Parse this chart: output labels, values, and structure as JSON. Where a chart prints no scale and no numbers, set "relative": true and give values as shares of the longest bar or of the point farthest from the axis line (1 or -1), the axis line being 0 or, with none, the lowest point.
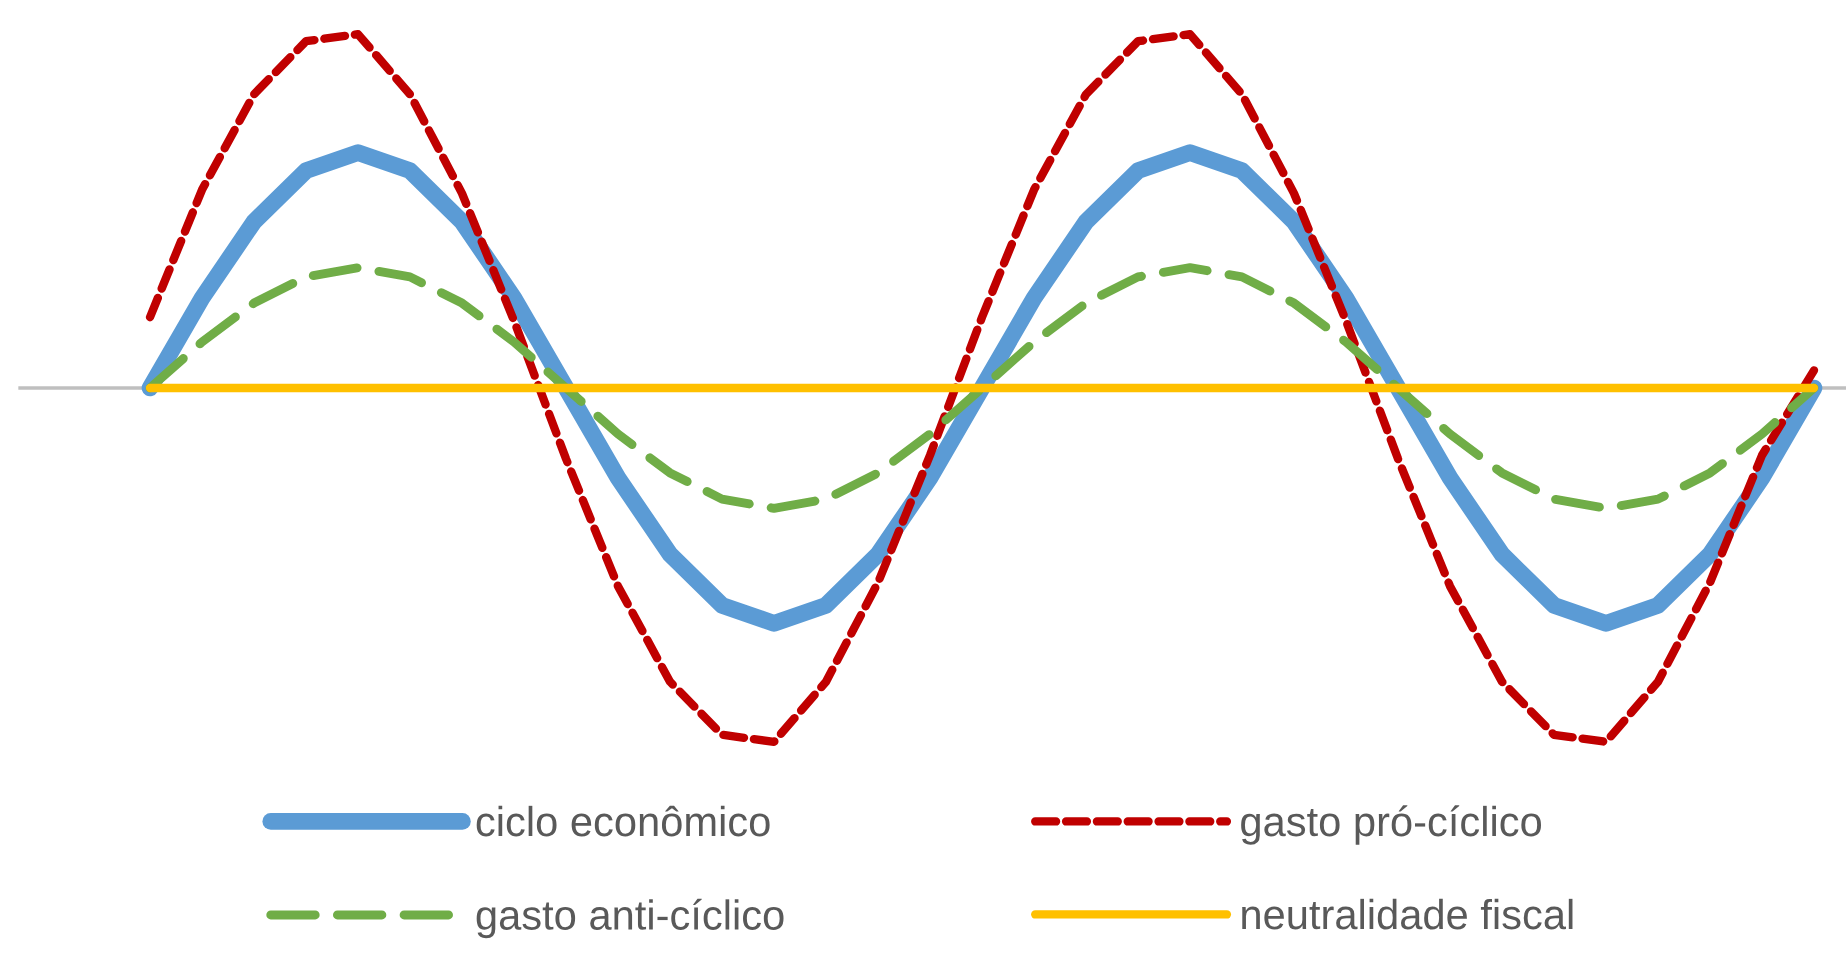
{
  "chart_data": {
    "type": "line",
    "relative": true,
    "categories": [
      null,
      null,
      null,
      null,
      null,
      null,
      null,
      null,
      null,
      null,
      null,
      null,
      null,
      null,
      null,
      null,
      null,
      null,
      null,
      null,
      null,
      null,
      null,
      null,
      null,
      null,
      null,
      null,
      null,
      null,
      null,
      null,
      null
    ],
    "series": [
      {
        "name": "ciclo econômico",
        "color": "#5b9bd5",
        "line_style": "solid",
        "values": [
          0,
          0.254,
          0.47,
          0.614,
          0.665,
          0.614,
          0.47,
          0.254,
          0,
          -0.254,
          -0.47,
          -0.614,
          -0.665,
          -0.614,
          -0.47,
          -0.254,
          0,
          0.254,
          0.47,
          0.614,
          0.665,
          0.614,
          0.47,
          0.254,
          0,
          -0.254,
          -0.47,
          -0.614,
          -0.665,
          -0.614,
          -0.47,
          -0.254,
          0
        ]
      },
      {
        "name": "gasto pró-cíclico",
        "color": "#c00000",
        "line_style": "dotted",
        "values": [
          0.2,
          0.56,
          0.83,
          0.98,
          1,
          0.83,
          0.55,
          0.19,
          -0.2,
          -0.56,
          -0.83,
          -0.98,
          -1,
          -0.83,
          -0.55,
          -0.19,
          0.2,
          0.56,
          0.83,
          0.98,
          1,
          0.83,
          0.55,
          0.19,
          -0.2,
          -0.56,
          -0.83,
          -0.98,
          -1,
          -0.83,
          -0.55,
          -0.19,
          0.05
        ]
      },
      {
        "name": "gasto anti-cíclico",
        "color": "#70ad47",
        "line_style": "dashed",
        "values": [
          0,
          0.13,
          0.24,
          0.314,
          0.34,
          0.314,
          0.24,
          0.13,
          0,
          -0.13,
          -0.24,
          -0.314,
          -0.34,
          -0.314,
          -0.24,
          -0.13,
          0,
          0.13,
          0.24,
          0.314,
          0.34,
          0.314,
          0.24,
          0.13,
          0,
          -0.13,
          -0.24,
          -0.314,
          -0.34,
          -0.314,
          -0.24,
          -0.13,
          0
        ]
      },
      {
        "name": "neutralidade fiscal",
        "color": "#ffc000",
        "line_style": "solid",
        "values": [
          0,
          0,
          0,
          0,
          0,
          0,
          0,
          0,
          0,
          0,
          0,
          0,
          0,
          0,
          0,
          0,
          0,
          0,
          0,
          0,
          0,
          0,
          0,
          0,
          0,
          0,
          0,
          0,
          0,
          0,
          0,
          0,
          0
        ]
      }
    ],
    "legend": "bottom",
    "marker": "none"
  }
}
